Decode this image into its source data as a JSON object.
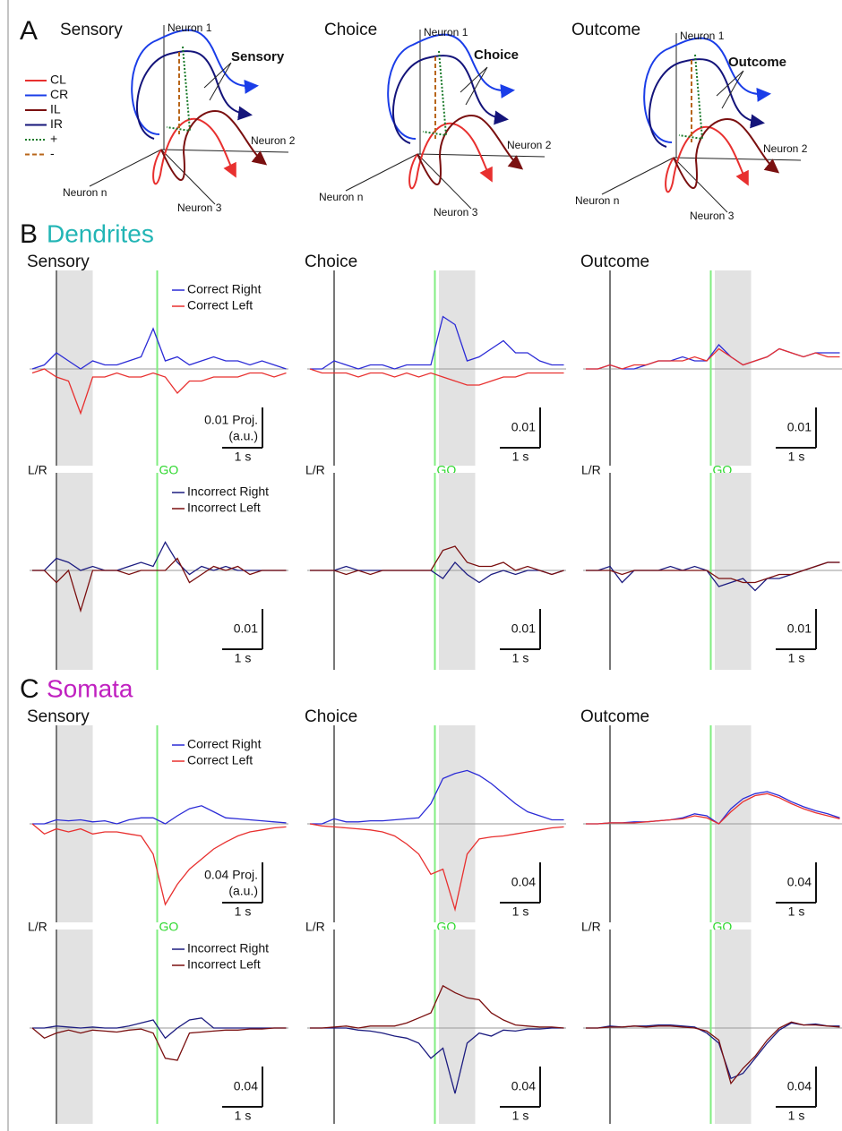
{
  "timing": {
    "columns": [
      "Sensory",
      "Choice",
      "Outcome"
    ],
    "t": [
      -0.6,
      -0.3,
      0,
      0.3,
      0.6,
      0.9,
      1.2,
      1.5,
      1.8,
      2.1,
      2.4,
      2.7,
      3,
      3.3,
      3.6,
      3.9,
      4.2,
      4.5,
      4.8,
      5.1,
      5.4,
      5.7
    ],
    "onset": 0,
    "go": 2.5,
    "shade": [
      [
        0,
        0.9
      ],
      [
        2.6,
        3.5
      ],
      [
        2.6,
        3.5
      ]
    ],
    "scale": 1,
    "scale_label": "1 s",
    "onset_label": "L/R",
    "go_label": "GO"
  },
  "panel_a": {
    "label": "A",
    "axes": [
      "Neuron 1",
      "Neuron 2",
      "Neuron 3",
      "Neuron n"
    ],
    "legend": [
      {
        "label": "CL",
        "color": "#e8302f",
        "dash": "solid"
      },
      {
        "label": "CR",
        "color": "#1a3de8",
        "dash": "solid"
      },
      {
        "label": "IL",
        "color": "#7a1010",
        "dash": "solid"
      },
      {
        "label": "IR",
        "color": "#14147a",
        "dash": "solid"
      },
      {
        "label": "+",
        "color": "#1a7a2a",
        "dash": "dotted"
      },
      {
        "label": "-",
        "color": "#b8661a",
        "dash": "dashed"
      }
    ]
  },
  "panel_b": {
    "label": "B",
    "title": "Dendrites",
    "title_color": "#22b5b5",
    "scale": {
      "value": 0.01,
      "label": "0.01",
      "first_label": "0.01 Proj.",
      "unit": "(a.u.)"
    },
    "rows": [
      {
        "series": [
          {
            "name": "Correct Right",
            "color": "#2b2bd6"
          },
          {
            "name": "Correct Left",
            "color": "#e8302f"
          }
        ],
        "plots": [
          [
            [
              0,
              0.001,
              0.004,
              0.002,
              0,
              0.002,
              0.001,
              0.001,
              0.002,
              0.003,
              0.01,
              0.002,
              0.003,
              0.001,
              0.002,
              0.003,
              0.002,
              0.002,
              0.001,
              0.002,
              0.001,
              0
            ],
            [
              -0.001,
              0,
              -0.002,
              -0.003,
              -0.011,
              -0.002,
              -0.002,
              -0.001,
              -0.002,
              -0.002,
              -0.001,
              -0.002,
              -0.006,
              -0.003,
              -0.003,
              -0.002,
              -0.002,
              -0.002,
              -0.001,
              -0.001,
              -0.002,
              -0.001
            ]
          ],
          [
            [
              0,
              0,
              0.002,
              0.001,
              0,
              0.001,
              0.001,
              0,
              0.001,
              0.001,
              0.001,
              0.013,
              0.011,
              0.002,
              0.003,
              0.005,
              0.007,
              0.004,
              0.004,
              0.002,
              0.001,
              0.001
            ],
            [
              0,
              -0.001,
              -0.001,
              -0.001,
              -0.002,
              -0.001,
              -0.001,
              -0.002,
              -0.001,
              -0.002,
              -0.001,
              -0.002,
              -0.003,
              -0.004,
              -0.004,
              -0.003,
              -0.002,
              -0.002,
              -0.001,
              -0.001,
              -0.001,
              -0.001
            ]
          ],
          [
            [
              0,
              0,
              0.001,
              0,
              0,
              0.001,
              0.002,
              0.002,
              0.003,
              0.002,
              0.002,
              0.006,
              0.003,
              0.001,
              0.002,
              0.003,
              0.005,
              0.004,
              0.003,
              0.004,
              0.004,
              0.004
            ],
            [
              0,
              0,
              0.001,
              0,
              0.001,
              0.001,
              0.002,
              0.002,
              0.002,
              0.003,
              0.002,
              0.005,
              0.003,
              0.001,
              0.002,
              0.003,
              0.005,
              0.004,
              0.003,
              0.004,
              0.003,
              0.003
            ]
          ]
        ]
      },
      {
        "series": [
          {
            "name": "Incorrect Right",
            "color": "#1c1c80"
          },
          {
            "name": "Incorrect Left",
            "color": "#7a0f0f"
          }
        ],
        "plots": [
          [
            [
              0,
              0,
              0.003,
              0.002,
              0,
              0.001,
              0,
              0,
              0.001,
              0.002,
              0.001,
              0.007,
              0.002,
              -0.001,
              0.001,
              0,
              0.001,
              0,
              0,
              0,
              0,
              0
            ],
            [
              0,
              0,
              -0.003,
              0,
              -0.01,
              0,
              0,
              0,
              -0.001,
              0,
              0,
              0,
              0.003,
              -0.003,
              -0.001,
              0.001,
              0,
              0.001,
              -0.001,
              0,
              0,
              0
            ]
          ],
          [
            [
              0,
              0,
              0,
              0.001,
              0,
              0,
              0,
              0,
              0,
              0,
              0,
              -0.002,
              0.002,
              -0.001,
              -0.003,
              -0.001,
              0,
              -0.001,
              0,
              0,
              -0.001,
              0
            ],
            [
              0,
              0,
              0,
              -0.001,
              0,
              -0.001,
              0,
              0,
              0,
              0,
              0,
              0.005,
              0.006,
              0.002,
              0.001,
              0.001,
              0.002,
              0,
              0.001,
              0,
              -0.001,
              0
            ]
          ],
          [
            [
              0,
              0,
              0.001,
              -0.003,
              0,
              0,
              0,
              0.001,
              0,
              0.001,
              0,
              -0.004,
              -0.003,
              -0.002,
              -0.005,
              -0.002,
              -0.002,
              -0.001,
              0,
              0.001,
              0.002,
              0.002
            ],
            [
              0,
              0,
              0,
              -0.001,
              0,
              0,
              0,
              0,
              0,
              0,
              0,
              -0.002,
              -0.002,
              -0.003,
              -0.003,
              -0.002,
              -0.001,
              -0.001,
              0,
              0.001,
              0.002,
              0.002
            ]
          ]
        ]
      }
    ]
  },
  "panel_c": {
    "label": "C",
    "title": "Somata",
    "title_color": "#c020c0",
    "scale": {
      "value": 0.04,
      "label": "0.04",
      "first_label": "0.04 Proj.",
      "unit": "(a.u.)"
    },
    "rows": [
      {
        "series": [
          {
            "name": "Correct Right",
            "color": "#2b2bd6"
          },
          {
            "name": "Correct Left",
            "color": "#e8302f"
          }
        ],
        "plots": [
          [
            [
              0,
              0,
              0.004,
              0.003,
              0.004,
              0.002,
              0.003,
              0,
              0.004,
              0.006,
              0.006,
              0,
              0.008,
              0.015,
              0.018,
              0.012,
              0.006,
              0.005,
              0.004,
              0.003,
              0.002,
              0.001
            ],
            [
              0,
              -0.01,
              -0.005,
              -0.008,
              -0.005,
              -0.01,
              -0.008,
              -0.008,
              -0.01,
              -0.012,
              -0.03,
              -0.08,
              -0.06,
              -0.045,
              -0.035,
              -0.025,
              -0.018,
              -0.012,
              -0.008,
              -0.006,
              -0.004,
              -0.003
            ]
          ],
          [
            [
              0,
              0,
              0.005,
              0.002,
              0.002,
              0.003,
              0.003,
              0.004,
              0.005,
              0.006,
              0.02,
              0.045,
              0.05,
              0.053,
              0.048,
              0.04,
              0.03,
              0.02,
              0.012,
              0.008,
              0.004,
              0.004
            ],
            [
              0,
              -0.002,
              -0.003,
              -0.004,
              -0.005,
              -0.006,
              -0.008,
              -0.012,
              -0.02,
              -0.03,
              -0.05,
              -0.045,
              -0.085,
              -0.03,
              -0.015,
              -0.013,
              -0.012,
              -0.01,
              -0.008,
              -0.006,
              -0.004,
              -0.003
            ]
          ],
          [
            [
              0,
              0,
              0.001,
              0.001,
              0.002,
              0.002,
              0.003,
              0.004,
              0.006,
              0.01,
              0.008,
              0,
              0.015,
              0.025,
              0.03,
              0.032,
              0.028,
              0.022,
              0.017,
              0.013,
              0.01,
              0.006
            ],
            [
              0,
              0,
              0.001,
              0.001,
              0.001,
              0.002,
              0.003,
              0.004,
              0.005,
              0.008,
              0.006,
              0,
              0.012,
              0.022,
              0.028,
              0.03,
              0.026,
              0.02,
              0.015,
              0.011,
              0.008,
              0.005
            ]
          ]
        ]
      },
      {
        "series": [
          {
            "name": "Incorrect Right",
            "color": "#1c1c80"
          },
          {
            "name": "Incorrect Left",
            "color": "#7a0f0f"
          }
        ],
        "plots": [
          [
            [
              0,
              0,
              0.002,
              0.001,
              0,
              0.001,
              0,
              0,
              0.002,
              0.005,
              0.008,
              -0.01,
              0,
              0.008,
              0.01,
              0,
              0,
              0,
              0,
              0,
              0,
              0
            ],
            [
              0,
              -0.01,
              -0.005,
              -0.002,
              -0.005,
              -0.002,
              -0.003,
              -0.004,
              -0.002,
              -0.001,
              -0.005,
              -0.03,
              -0.032,
              -0.005,
              -0.004,
              -0.003,
              -0.002,
              -0.002,
              -0.001,
              -0.001,
              0,
              0
            ]
          ],
          [
            [
              0,
              0,
              0,
              0,
              -0.002,
              -0.003,
              -0.005,
              -0.008,
              -0.01,
              -0.015,
              -0.03,
              -0.02,
              -0.065,
              -0.015,
              -0.005,
              -0.008,
              -0.002,
              -0.003,
              -0.001,
              -0.001,
              0,
              0
            ],
            [
              0,
              0,
              0.001,
              0.002,
              0,
              0.002,
              0.002,
              0.002,
              0.005,
              0.01,
              0.015,
              0.042,
              0.035,
              0.03,
              0.028,
              0.015,
              0.008,
              0.003,
              0.002,
              0.001,
              0.001,
              0
            ]
          ],
          [
            [
              0,
              0,
              0.002,
              0.001,
              0.002,
              0.002,
              0.003,
              0.003,
              0.002,
              0.001,
              -0.005,
              -0.015,
              -0.05,
              -0.045,
              -0.03,
              -0.015,
              -0.002,
              0.005,
              0.003,
              0.004,
              0.002,
              0.002
            ],
            [
              0,
              0,
              0.001,
              0.001,
              0.002,
              0.001,
              0.002,
              0.002,
              0.001,
              0,
              -0.003,
              -0.012,
              -0.055,
              -0.04,
              -0.028,
              -0.012,
              0,
              0.006,
              0.003,
              0.003,
              0.002,
              0.001
            ]
          ]
        ]
      }
    ]
  }
}
